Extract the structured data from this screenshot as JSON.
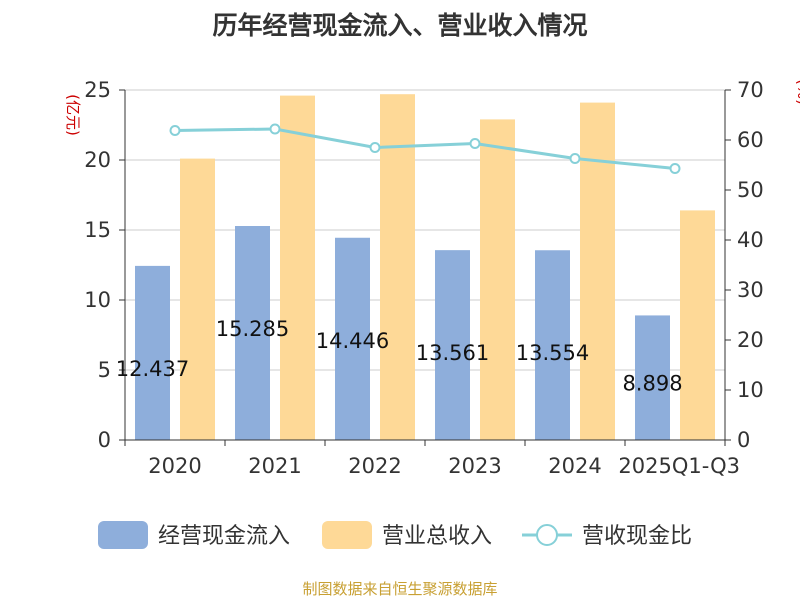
{
  "chart_data": {
    "type": "bar",
    "title": "历年经营现金流入、营业收入情况",
    "ylabel_left": "(亿元)",
    "ylabel_right": "(%)",
    "categories": [
      "2020",
      "2021",
      "2022",
      "2023",
      "2024",
      "2025Q1-Q3"
    ],
    "y_left_range": [
      0,
      25
    ],
    "y_left_ticks": [
      "0",
      "5",
      "10",
      "15",
      "20",
      "25"
    ],
    "y_right_range": [
      0,
      70
    ],
    "y_right_ticks": [
      "0",
      "10",
      "20",
      "30",
      "40",
      "50",
      "60",
      "70"
    ],
    "grid": true,
    "legend_position": "bottom",
    "series": [
      {
        "name": "经营现金流入",
        "type": "bar",
        "axis": "left",
        "color": "#8eaedb",
        "values": [
          12.437,
          15.285,
          14.446,
          13.561,
          13.554,
          8.898
        ],
        "labels": [
          "12.437",
          "15.285",
          "14.446",
          "13.561",
          "13.554",
          "8.898"
        ]
      },
      {
        "name": "营业总收入",
        "type": "bar",
        "axis": "left",
        "color": "#fed997",
        "values": [
          20.1,
          24.6,
          24.7,
          22.9,
          24.1,
          16.4
        ]
      },
      {
        "name": "营收现金比",
        "type": "line",
        "axis": "right",
        "color": "#86d0d8",
        "values": [
          61.9,
          62.2,
          58.5,
          59.3,
          56.3,
          54.3
        ]
      }
    ]
  },
  "footer": {
    "source": "制图数据来自恒生聚源数据库"
  }
}
